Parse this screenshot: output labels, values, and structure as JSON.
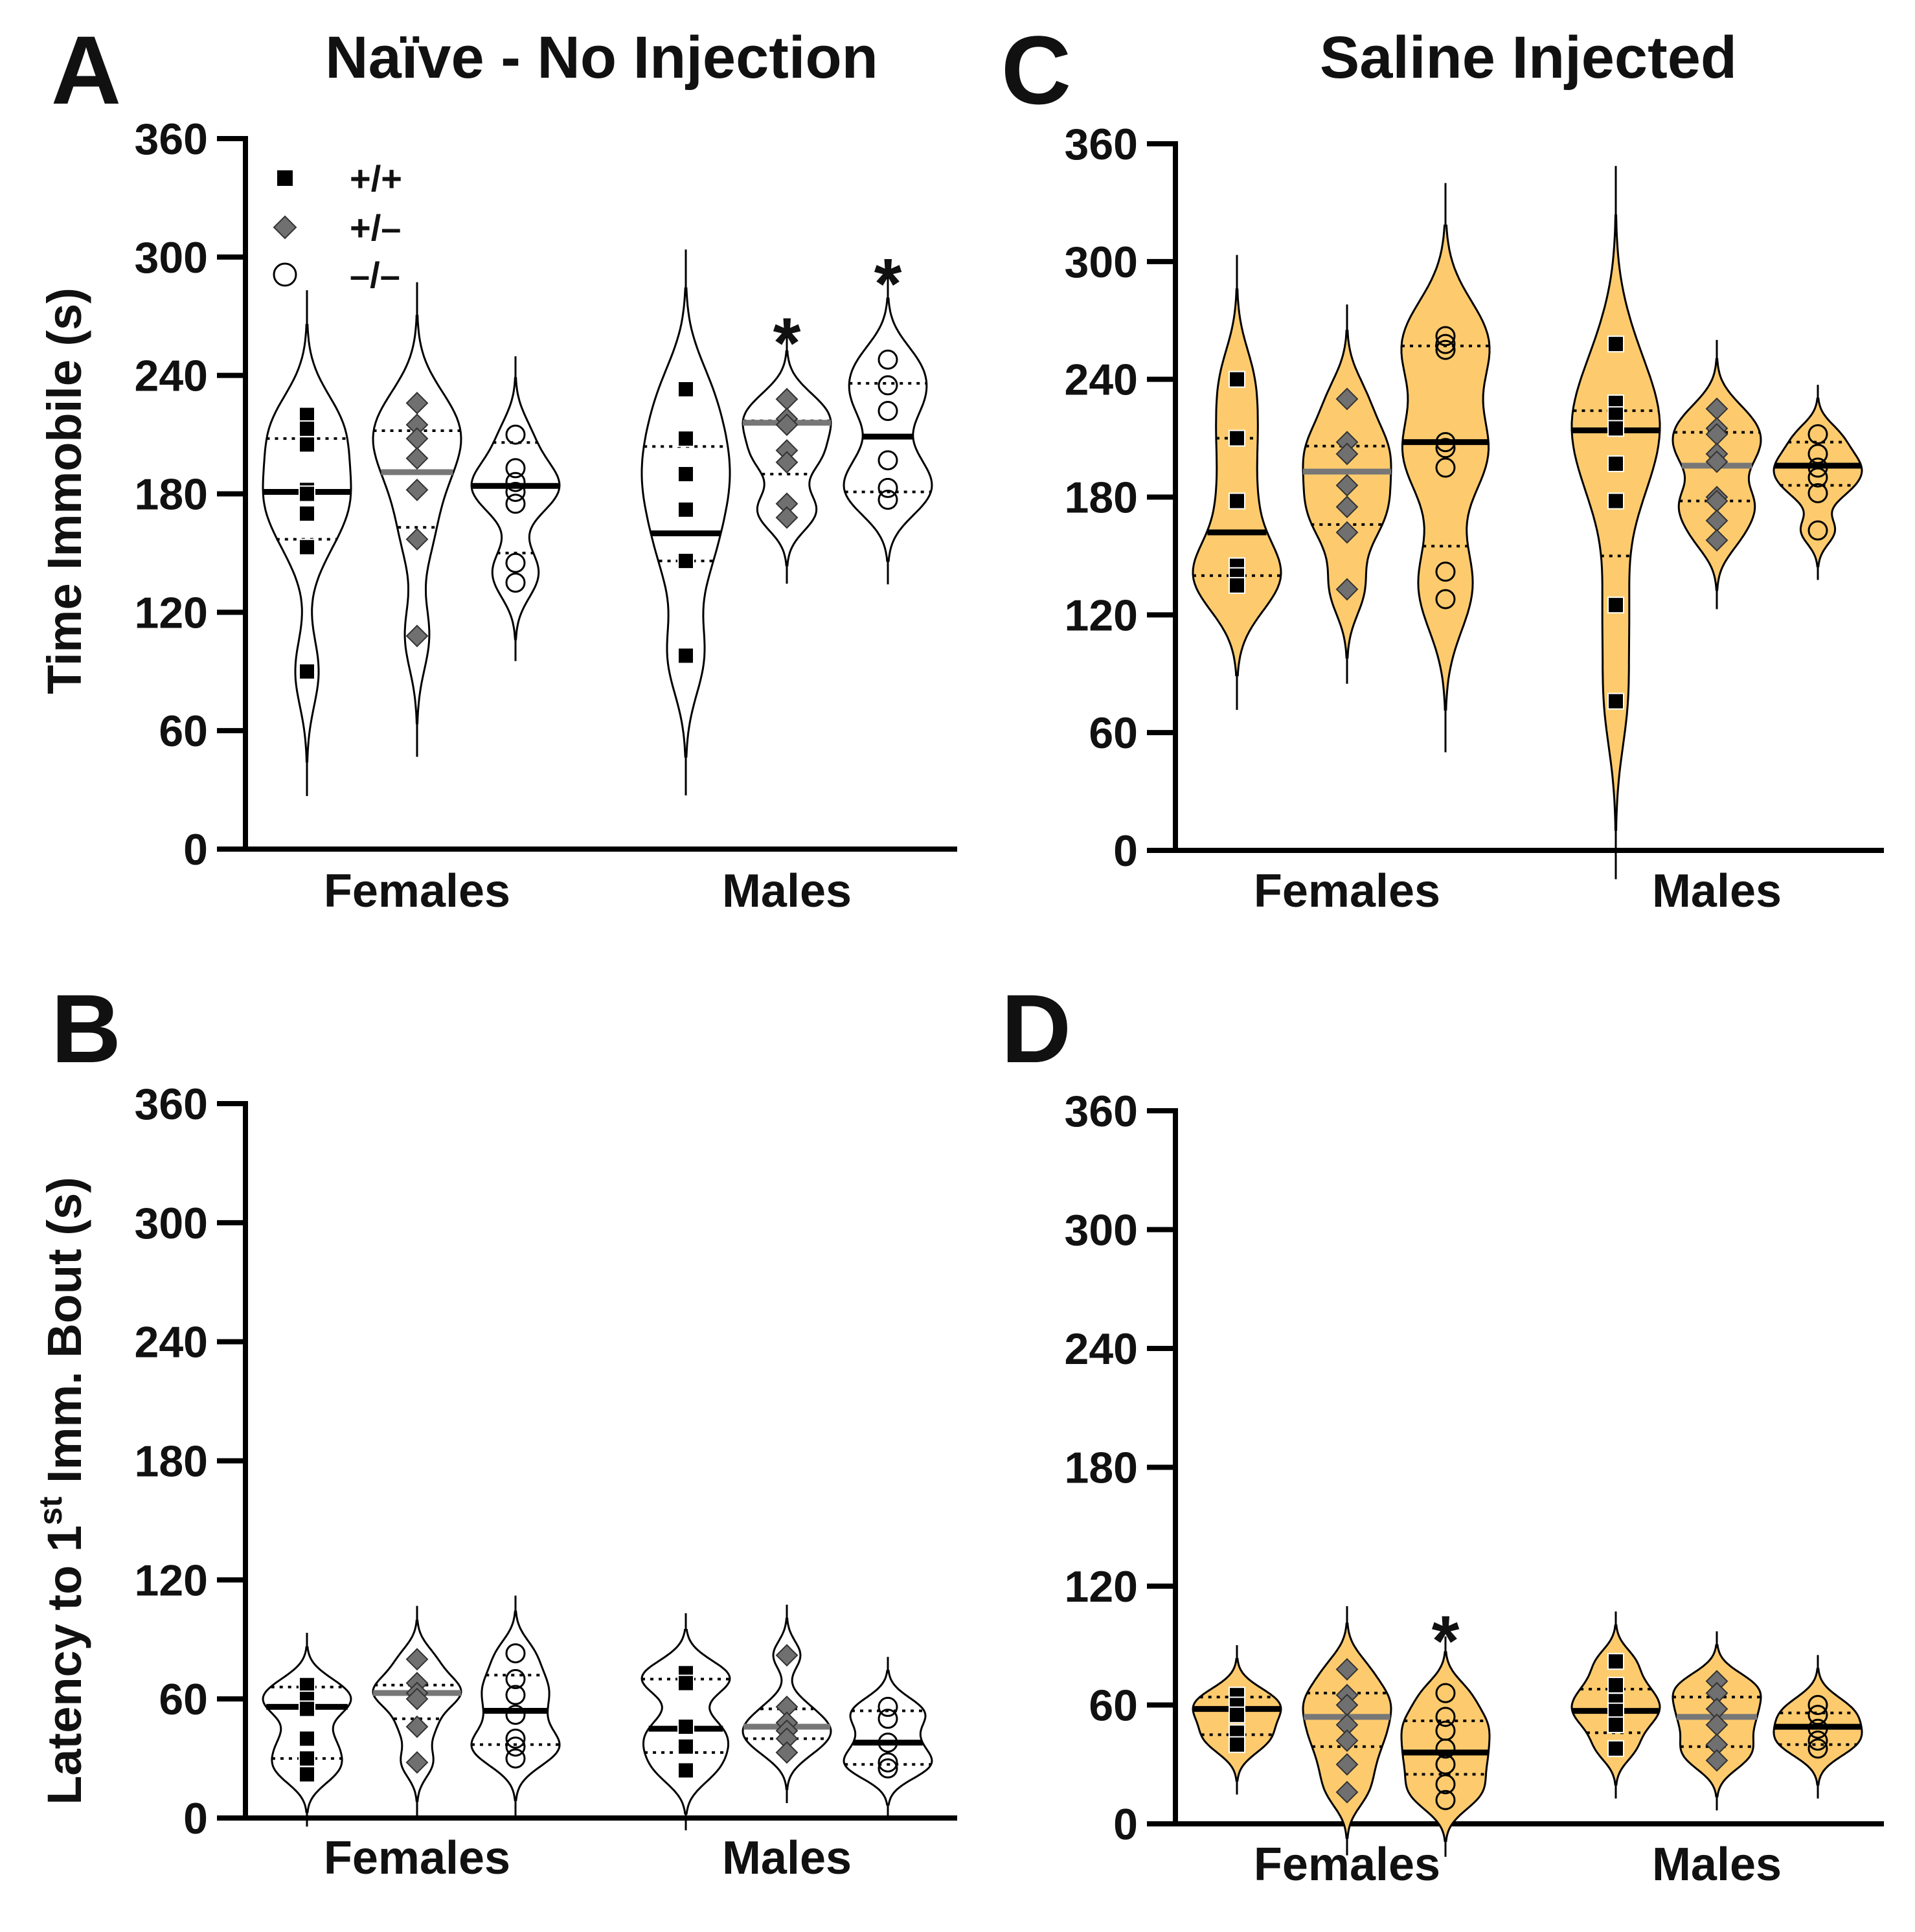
{
  "colors": {
    "fill_saline": "#FDCB6E",
    "fill_naive": "#FFFFFF",
    "het": "#707070",
    "wt": "#000000",
    "ko": "#FFFFFF",
    "median_het": "#777777"
  },
  "legend": [
    {
      "label": "+/+",
      "marker": "square"
    },
    {
      "label": "+/–",
      "marker": "diamond"
    },
    {
      "label": "–/–",
      "marker": "circle"
    }
  ],
  "chart_data": [
    {
      "panel": "A",
      "type": "violin",
      "title": "Naïve - No Injection",
      "ylabel": "Time Immobile (s)",
      "ylim": [
        0,
        360
      ],
      "yticks": [
        0,
        60,
        120,
        180,
        240,
        300,
        360
      ],
      "categories": [
        "Females",
        "Males"
      ],
      "fill": "naive",
      "groups": [
        {
          "sex": "Females",
          "genotype": "+/+",
          "values": [
            220,
            213,
            205,
            182,
            180,
            170,
            153,
            90
          ],
          "median": 181,
          "q1": 157,
          "q3": 208
        },
        {
          "sex": "Females",
          "genotype": "+/–",
          "values": [
            226,
            215,
            208,
            198,
            182,
            157,
            108
          ],
          "median": 191,
          "q1": 163,
          "q3": 212
        },
        {
          "sex": "Females",
          "genotype": "–/–",
          "values": [
            210,
            193,
            186,
            181,
            175,
            145,
            135
          ],
          "median": 184,
          "q1": 150,
          "q3": 206
        },
        {
          "sex": "Males",
          "genotype": "+/+",
          "values": [
            233,
            208,
            190,
            172,
            146,
            98
          ],
          "median": 160,
          "q1": 146,
          "q3": 204
        },
        {
          "sex": "Males",
          "genotype": "+/–",
          "values": [
            228,
            218,
            215,
            202,
            196,
            175,
            168
          ],
          "median": 216,
          "q1": 190,
          "q3": 217
        },
        {
          "sex": "Males",
          "genotype": "–/–",
          "values": [
            248,
            235,
            222,
            197,
            183,
            177
          ],
          "median": 209,
          "q1": 181,
          "q3": 236
        }
      ],
      "annotations": [
        {
          "text": "*",
          "group": 4,
          "y": 262
        },
        {
          "text": "*",
          "group": 5,
          "y": 292
        }
      ]
    },
    {
      "panel": "B",
      "type": "violin",
      "title": "",
      "ylabel": "Latency to 1",
      "ylabel_sup": "st",
      "ylabel_end": " Imm. Bout (s)",
      "ylim": [
        0,
        360
      ],
      "yticks": [
        0,
        60,
        120,
        180,
        240,
        300,
        360
      ],
      "categories": [
        "Females",
        "Males"
      ],
      "fill": "naive",
      "groups": [
        {
          "sex": "Females",
          "genotype": "+/+",
          "values": [
            67,
            60,
            55,
            40,
            30,
            22
          ],
          "median": 56,
          "q1": 30,
          "q3": 66
        },
        {
          "sex": "Females",
          "genotype": "+/–",
          "values": [
            80,
            68,
            63,
            60,
            46,
            28
          ],
          "median": 63,
          "q1": 50,
          "q3": 67
        },
        {
          "sex": "Females",
          "genotype": "–/–",
          "values": [
            83,
            70,
            62,
            52,
            40,
            36,
            30
          ],
          "median": 54,
          "q1": 37,
          "q3": 72
        },
        {
          "sex": "Males",
          "genotype": "+/+",
          "values": [
            73,
            68,
            46,
            36,
            24
          ],
          "median": 45,
          "q1": 33,
          "q3": 70
        },
        {
          "sex": "Males",
          "genotype": "+/–",
          "values": [
            82,
            56,
            48,
            44,
            40,
            33
          ],
          "median": 46,
          "q1": 40,
          "q3": 55
        },
        {
          "sex": "Males",
          "genotype": "–/–",
          "values": [
            56,
            50,
            38,
            28,
            25
          ],
          "median": 38,
          "q1": 27,
          "q3": 54
        }
      ],
      "annotations": []
    },
    {
      "panel": "C",
      "type": "violin",
      "title": "Saline Injected",
      "ylabel": "",
      "ylim": [
        0,
        360
      ],
      "yticks": [
        0,
        60,
        120,
        180,
        240,
        300,
        360
      ],
      "categories": [
        "Females",
        "Males"
      ],
      "fill": "saline",
      "groups": [
        {
          "sex": "Females",
          "genotype": "+/+",
          "values": [
            240,
            210,
            178,
            145,
            140,
            135
          ],
          "median": 162,
          "q1": 140,
          "q3": 210
        },
        {
          "sex": "Females",
          "genotype": "+/–",
          "values": [
            230,
            208,
            202,
            186,
            175,
            162,
            133
          ],
          "median": 193,
          "q1": 166,
          "q3": 206
        },
        {
          "sex": "Females",
          "genotype": "–/–",
          "values": [
            262,
            258,
            255,
            208,
            205,
            195,
            142,
            128
          ],
          "median": 208,
          "q1": 155,
          "q3": 257
        },
        {
          "sex": "Males",
          "genotype": "+/+",
          "values": [
            258,
            228,
            222,
            215,
            197,
            178,
            125,
            76
          ],
          "median": 214,
          "q1": 150,
          "q3": 224
        },
        {
          "sex": "Males",
          "genotype": "+/–",
          "values": [
            225,
            215,
            212,
            202,
            198,
            180,
            178,
            168,
            158
          ],
          "median": 196,
          "q1": 178,
          "q3": 213
        },
        {
          "sex": "Males",
          "genotype": "–/–",
          "values": [
            212,
            202,
            195,
            190,
            182,
            163
          ],
          "median": 196,
          "q1": 186,
          "q3": 208
        }
      ],
      "annotations": []
    },
    {
      "panel": "D",
      "type": "violin",
      "title": "",
      "ylabel": "",
      "ylim": [
        0,
        360
      ],
      "yticks": [
        0,
        60,
        120,
        180,
        240,
        300,
        360
      ],
      "categories": [
        "Females",
        "Males"
      ],
      "fill": "saline",
      "groups": [
        {
          "sex": "Females",
          "genotype": "+/+",
          "values": [
            65,
            60,
            55,
            46,
            40
          ],
          "median": 58,
          "q1": 45,
          "q3": 64
        },
        {
          "sex": "Females",
          "genotype": "+/–",
          "values": [
            78,
            65,
            60,
            50,
            42,
            30,
            16
          ],
          "median": 54,
          "q1": 39,
          "q3": 66
        },
        {
          "sex": "Females",
          "genotype": "–/–",
          "values": [
            66,
            54,
            47,
            38,
            30,
            20,
            12
          ],
          "median": 36,
          "q1": 25,
          "q3": 52
        },
        {
          "sex": "Males",
          "genotype": "+/+",
          "values": [
            82,
            70,
            62,
            57,
            50,
            38
          ],
          "median": 57,
          "q1": 46,
          "q3": 68
        },
        {
          "sex": "Males",
          "genotype": "+/–",
          "values": [
            72,
            66,
            58,
            50,
            40,
            32
          ],
          "median": 54,
          "q1": 39,
          "q3": 64
        },
        {
          "sex": "Males",
          "genotype": "–/–",
          "values": [
            60,
            55,
            48,
            42,
            38
          ],
          "median": 49,
          "q1": 40,
          "q3": 56
        }
      ],
      "annotations": [
        {
          "text": "*",
          "group": 2,
          "y": 98
        }
      ]
    }
  ]
}
